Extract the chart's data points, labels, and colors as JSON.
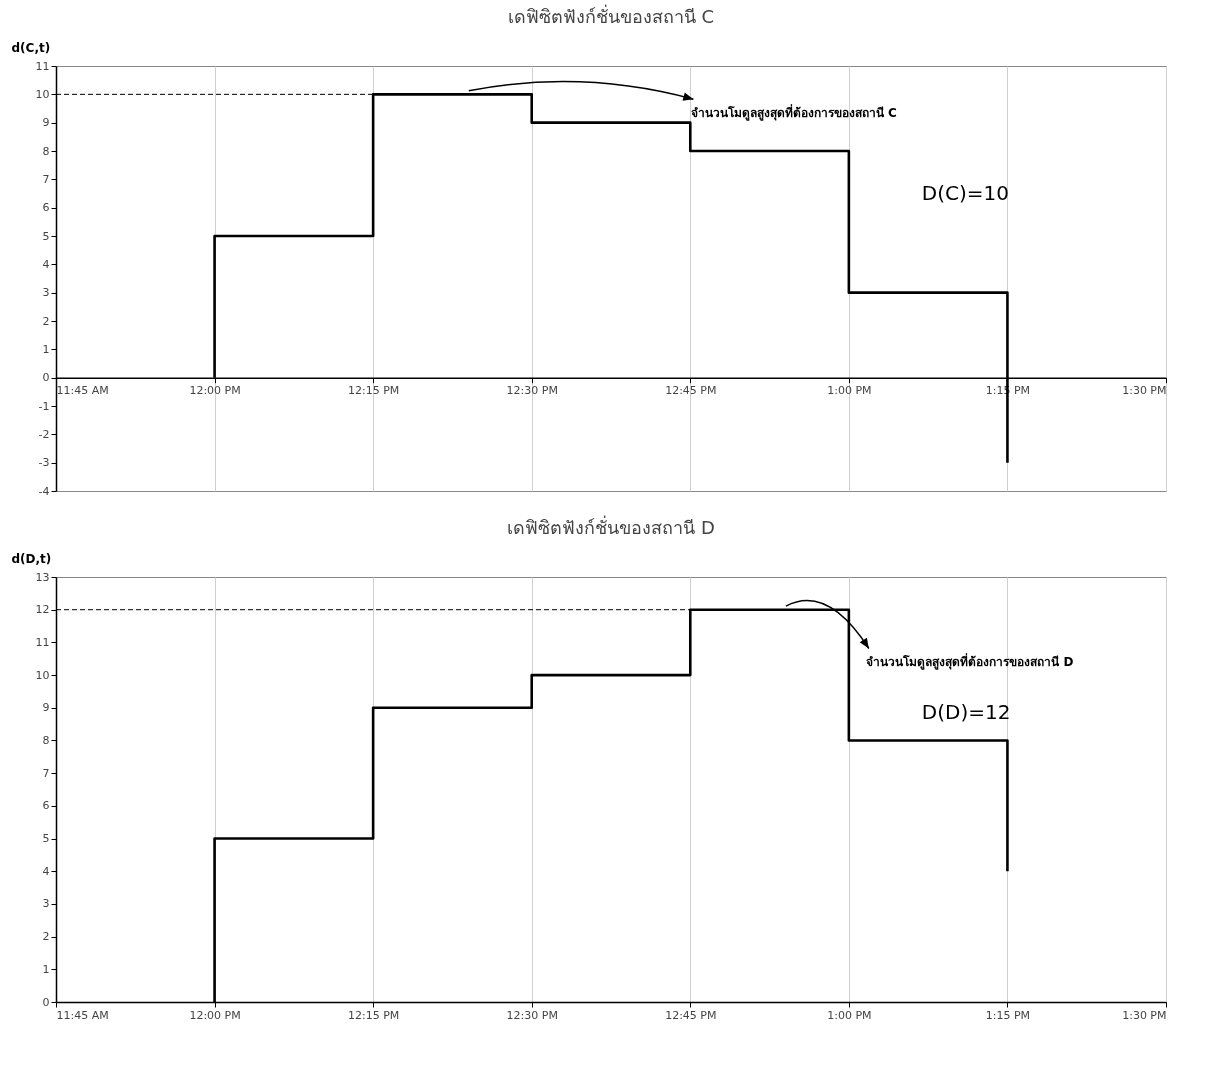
{
  "chart_data": [
    {
      "type": "step",
      "title": "เดฟิซิตฟังก์ชั่นของสถานี C",
      "ylabel": "d(C,t)",
      "x": [
        12,
        12,
        12.25,
        12.5,
        12.75,
        13,
        13.25,
        13.25
      ],
      "series": [
        {
          "color": "#000000",
          "values": [
            0,
            5,
            10,
            9,
            8,
            3,
            3,
            -3
          ]
        }
      ],
      "xlim": [
        11.75,
        13.5
      ],
      "xticks": [
        {
          "value": 11.75,
          "label": "11:45 AM"
        },
        {
          "value": 12,
          "label": "12:00 PM"
        },
        {
          "value": 12.25,
          "label": "12:15 PM"
        },
        {
          "value": 12.5,
          "label": "12:30 PM"
        },
        {
          "value": 12.75,
          "label": "12:45 PM"
        },
        {
          "value": 13,
          "label": "1:00 PM"
        },
        {
          "value": 13.25,
          "label": "1:15 PM"
        },
        {
          "value": 13.5,
          "label": "1:30 PM"
        }
      ],
      "ylim": [
        -4,
        11
      ],
      "yticks": [
        -4,
        -3,
        -2,
        -1,
        0,
        1,
        2,
        3,
        4,
        5,
        6,
        7,
        8,
        9,
        10,
        11
      ],
      "grid": "x",
      "marker": "none",
      "line_style": "solid",
      "ref_lines": [
        {
          "axis": "y",
          "value": 10,
          "line_style": "dashed",
          "color": "#000000"
        }
      ],
      "annotations": [
        {
          "text": "จำนวนโมดูลสูงสุดที่ต้องการของสถานี C",
          "x": 12.4,
          "y": 10
        },
        "D(C)=10"
      ]
    },
    {
      "type": "step",
      "title": "เดฟิซิตฟังก์ชั่นของสถานี D",
      "ylabel": "d(D,t)",
      "x": [
        12,
        12,
        12.25,
        12.5,
        12.75,
        13,
        13.25,
        13.25
      ],
      "series": [
        {
          "color": "#000000",
          "values": [
            0,
            5,
            9,
            10,
            12,
            8,
            8,
            4
          ]
        }
      ],
      "xlim": [
        11.75,
        13.5
      ],
      "xticks": [
        {
          "value": 11.75,
          "label": "11:45 AM"
        },
        {
          "value": 12,
          "label": "12:00 PM"
        },
        {
          "value": 12.25,
          "label": "12:15 PM"
        },
        {
          "value": 12.5,
          "label": "12:30 PM"
        },
        {
          "value": 12.75,
          "label": "12:45 PM"
        },
        {
          "value": 13,
          "label": "1:00 PM"
        },
        {
          "value": 13.25,
          "label": "1:15 PM"
        },
        {
          "value": 13.5,
          "label": "1:30 PM"
        }
      ],
      "ylim": [
        0,
        13
      ],
      "yticks": [
        0,
        1,
        2,
        3,
        4,
        5,
        6,
        7,
        8,
        9,
        10,
        11,
        12,
        13
      ],
      "grid": "x",
      "marker": "none",
      "line_style": "solid",
      "ref_lines": [
        {
          "axis": "y",
          "value": 12,
          "line_style": "dashed",
          "color": "#000000"
        }
      ],
      "annotations": [
        {
          "text": "จำนวนโมดูลสูงสุดที่ต้องการของสถานี D",
          "x": 12.9,
          "y": 12
        },
        "D(D)=12"
      ]
    }
  ]
}
